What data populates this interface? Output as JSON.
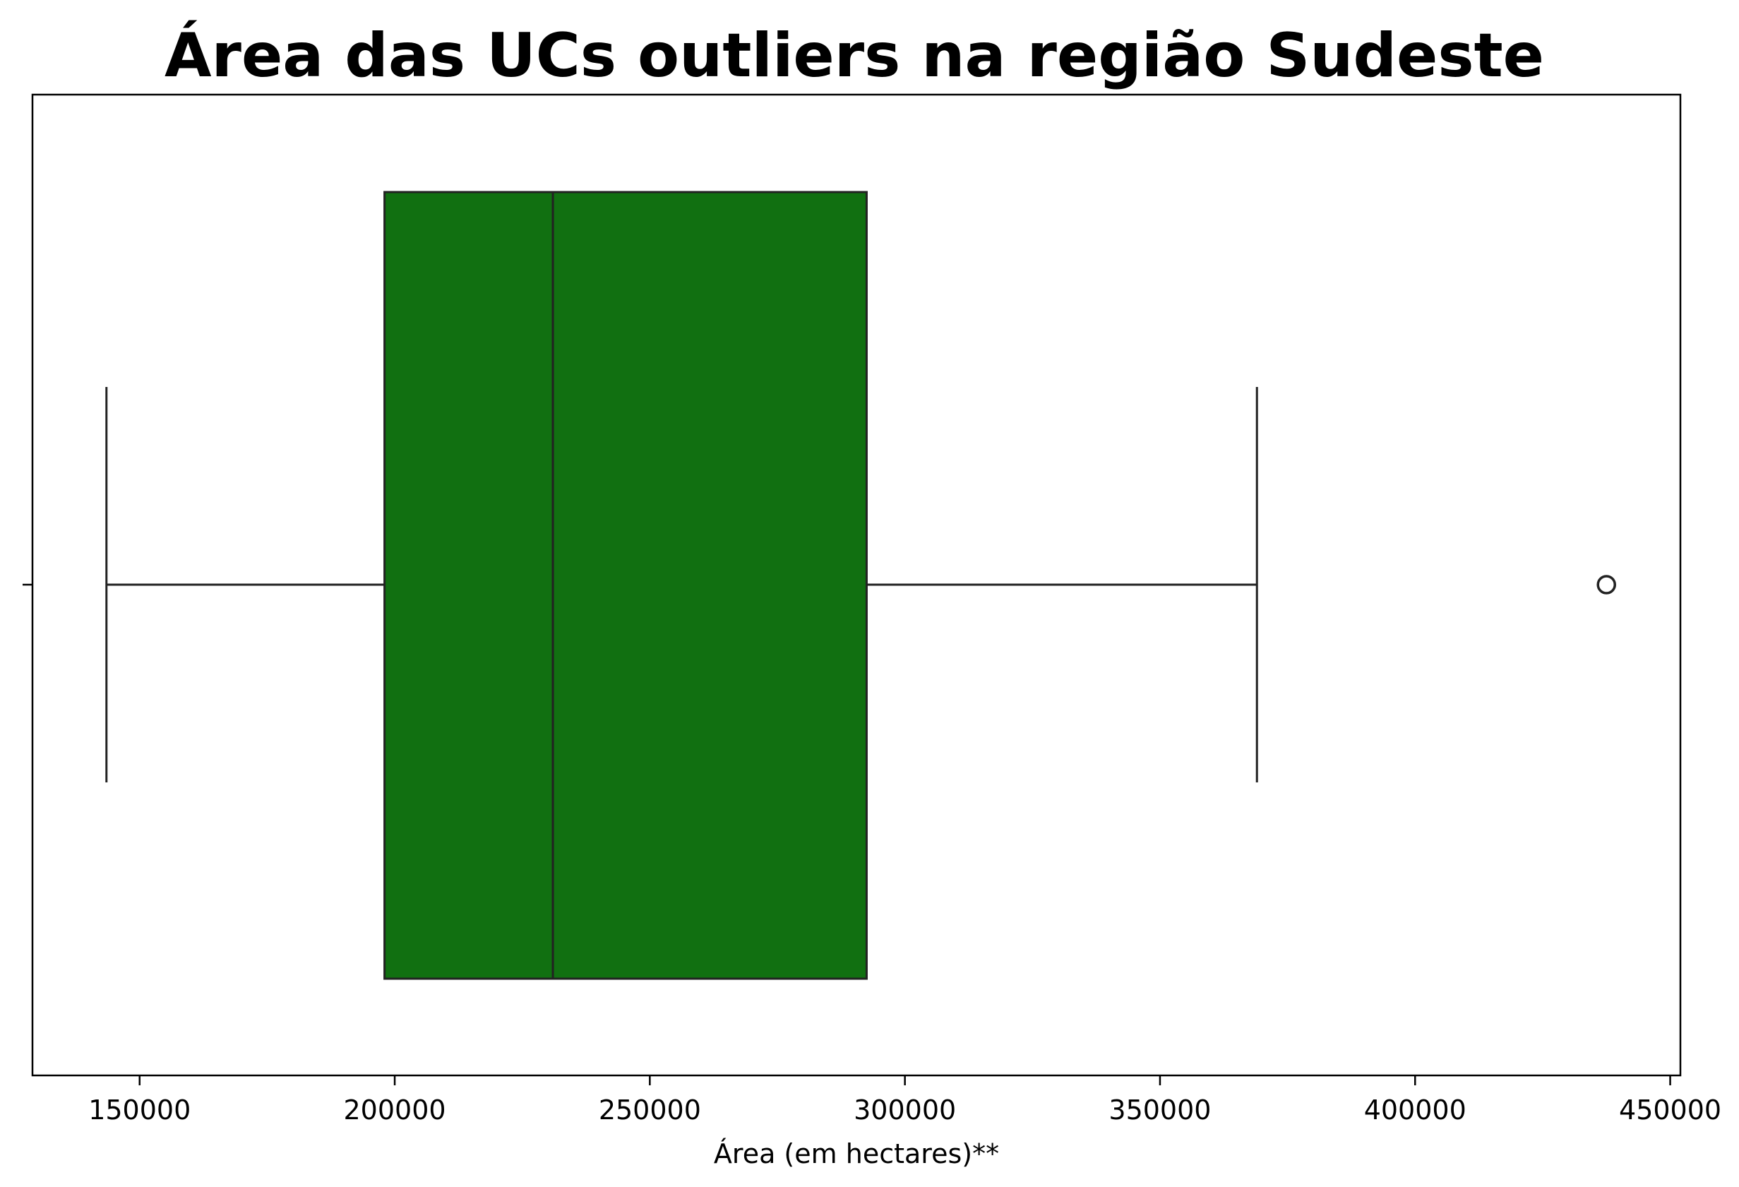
{
  "chart_data": {
    "type": "box",
    "title": "Área das UCs outliers na região Sudeste",
    "xlabel": "Área (em hectares)**",
    "ylabel": "",
    "orientation": "horizontal",
    "xlim": [
      129000,
      452000
    ],
    "xticks": [
      150000,
      200000,
      250000,
      300000,
      350000,
      400000,
      450000
    ],
    "xtick_labels": [
      "150000",
      "200000",
      "250000",
      "300000",
      "350000",
      "400000",
      "450000"
    ],
    "grid": false,
    "legend": "none",
    "box": {
      "whisker_low": 143500,
      "q1": 198000,
      "median": 231000,
      "q3": 292500,
      "whisker_high": 369000,
      "outliers": [
        437500
      ]
    },
    "colors": {
      "box_fill": "#117011",
      "lines": "#222222",
      "frame": "#000000"
    }
  }
}
